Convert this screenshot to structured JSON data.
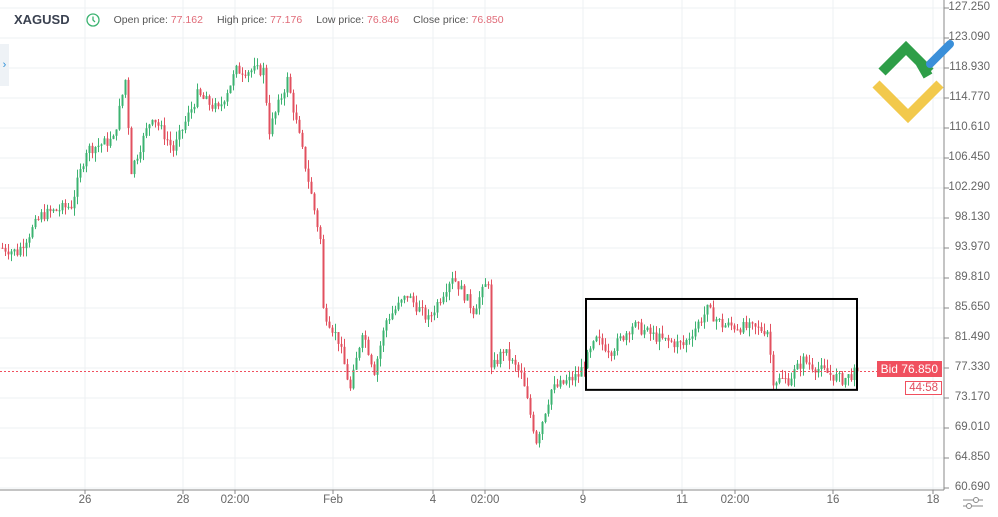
{
  "header": {
    "symbol": "XAGUSD",
    "open_label": "Open price:",
    "open": "77.162",
    "high_label": "High price:",
    "high": "77.176",
    "low_label": "Low price:",
    "low": "76.846",
    "close_label": "Close price:",
    "close": "76.850"
  },
  "price_axis": [
    "127.250",
    "123.090",
    "118.930",
    "114.770",
    "110.610",
    "106.450",
    "102.290",
    "98.130",
    "93.970",
    "89.810",
    "85.650",
    "81.490",
    "77.330",
    "73.170",
    "69.010",
    "64.850",
    "60.690"
  ],
  "time_axis": [
    "26",
    "28",
    "02:00",
    "Feb",
    "4",
    "02:00",
    "9",
    "11",
    "02:00",
    "16",
    "18"
  ],
  "bid_label": "Bid 76.850",
  "countdown": "44:58",
  "colors": {
    "up": "#3cb371",
    "down": "#e2505f",
    "bid": "#f0505f",
    "box": "#000000"
  },
  "chart_data": {
    "type": "candlestick",
    "ylim": [
      60.69,
      127.25
    ],
    "current_price": 76.85,
    "price_path": [
      [
        0,
        94.0
      ],
      [
        5,
        93.4
      ],
      [
        13,
        98.5
      ],
      [
        23,
        99.9
      ],
      [
        28,
        107.6
      ],
      [
        37,
        109.0
      ],
      [
        41,
        117.3
      ],
      [
        43,
        104.8
      ],
      [
        50,
        112.4
      ],
      [
        57,
        107.6
      ],
      [
        65,
        115.2
      ],
      [
        72,
        113.1
      ],
      [
        78,
        118.6
      ],
      [
        87,
        118.6
      ],
      [
        89,
        110.3
      ],
      [
        95,
        117.3
      ],
      [
        102,
        103.4
      ],
      [
        106,
        95.1
      ],
      [
        107,
        85.4
      ],
      [
        112,
        81.2
      ],
      [
        116,
        74.3
      ],
      [
        120,
        82.6
      ],
      [
        124,
        77.0
      ],
      [
        128,
        84.0
      ],
      [
        135,
        87.4
      ],
      [
        142,
        84.0
      ],
      [
        150,
        90.2
      ],
      [
        157,
        85.4
      ],
      [
        162,
        89.5
      ],
      [
        163,
        77.0
      ],
      [
        167,
        79.8
      ],
      [
        173,
        76.3
      ],
      [
        178,
        67.3
      ],
      [
        183,
        74.3
      ],
      [
        192,
        76.3
      ],
      [
        198,
        81.2
      ],
      [
        203,
        79.8
      ],
      [
        210,
        83.3
      ],
      [
        220,
        81.2
      ],
      [
        227,
        80.5
      ],
      [
        235,
        85.4
      ],
      [
        240,
        83.3
      ],
      [
        255,
        82.6
      ],
      [
        257,
        75.7
      ],
      [
        262,
        75.7
      ],
      [
        267,
        78.4
      ],
      [
        273,
        77.0
      ],
      [
        280,
        75.7
      ],
      [
        285,
        76.85
      ]
    ],
    "highlight_box": {
      "from_price": 74.3,
      "to_price": 86.9
    }
  },
  "icons": {
    "clock": "clock-icon",
    "expand": "chevron-right-icon",
    "settings": "sliders-icon",
    "logo": "litefinance-logo"
  }
}
